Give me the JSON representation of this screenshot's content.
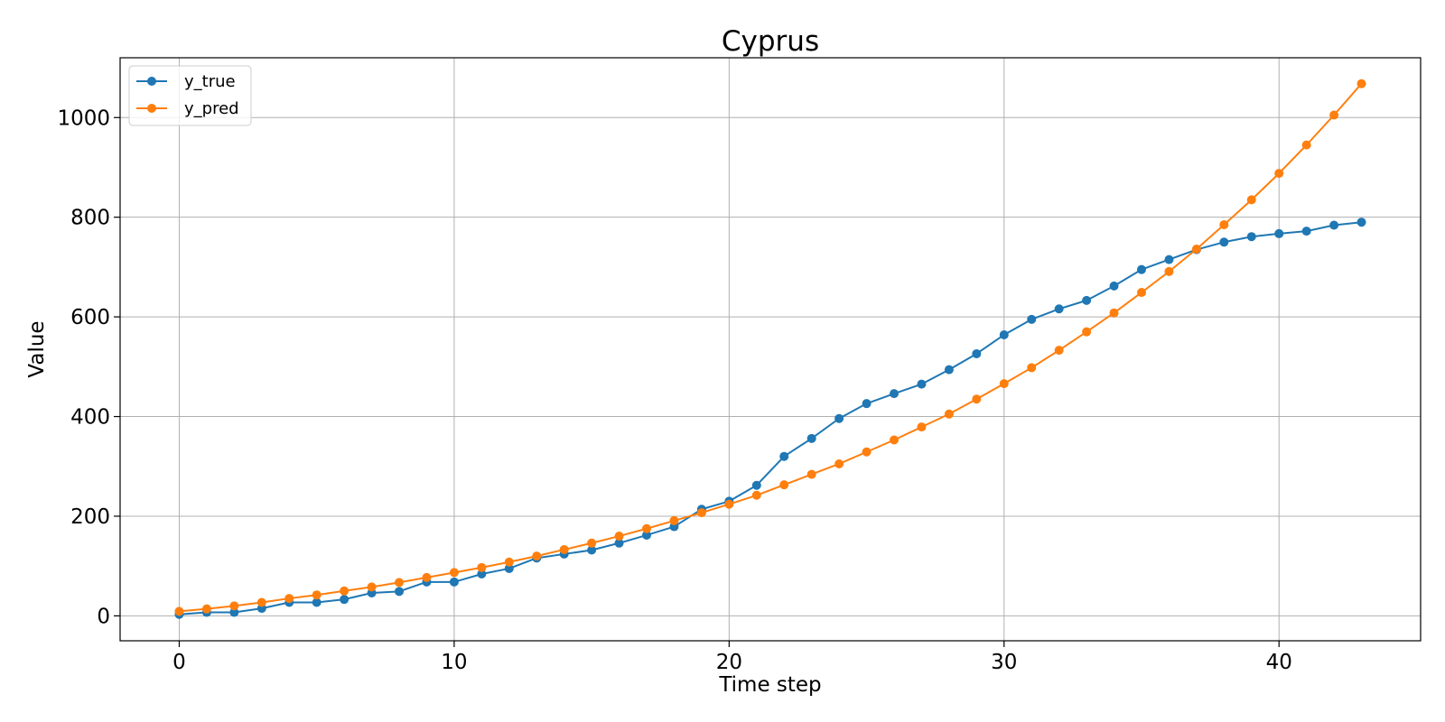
{
  "chart_data": {
    "type": "line",
    "title": "Cyprus",
    "xlabel": "Time step",
    "ylabel": "Value",
    "xlim": [
      -2.15,
      45.15
    ],
    "ylim": [
      -50,
      1120
    ],
    "xticks": [
      0,
      10,
      20,
      30,
      40
    ],
    "yticks": [
      0,
      200,
      400,
      600,
      800,
      1000
    ],
    "grid": true,
    "legend_position": "top-left",
    "x": [
      0,
      1,
      2,
      3,
      4,
      5,
      6,
      7,
      8,
      9,
      10,
      11,
      12,
      13,
      14,
      15,
      16,
      17,
      18,
      19,
      20,
      21,
      22,
      23,
      24,
      25,
      26,
      27,
      28,
      29,
      30,
      31,
      32,
      33,
      34,
      35,
      36,
      37,
      38,
      39,
      40,
      41,
      42,
      43
    ],
    "series": [
      {
        "name": "y_true",
        "color": "#1f77b4",
        "values": [
          3,
          7,
          7,
          15,
          27,
          27,
          33,
          46,
          49,
          68,
          68,
          84,
          95,
          116,
          124,
          132,
          146,
          162,
          179,
          214,
          230,
          262,
          320,
          356,
          396,
          426,
          446,
          465,
          494,
          526,
          564,
          595,
          616,
          633,
          662,
          695,
          715,
          735,
          750,
          761,
          767,
          772,
          784,
          790
        ]
      },
      {
        "name": "y_pred",
        "color": "#ff7f0e",
        "values": [
          9,
          14,
          20,
          27,
          35,
          42,
          50,
          58,
          67,
          77,
          87,
          97,
          108,
          120,
          133,
          146,
          160,
          175,
          191,
          207,
          224,
          242,
          263,
          284,
          305,
          329,
          353,
          379,
          405,
          435,
          466,
          498,
          533,
          570,
          608,
          649,
          691,
          736,
          785,
          835,
          888,
          945,
          1005,
          1068
        ]
      }
    ]
  }
}
